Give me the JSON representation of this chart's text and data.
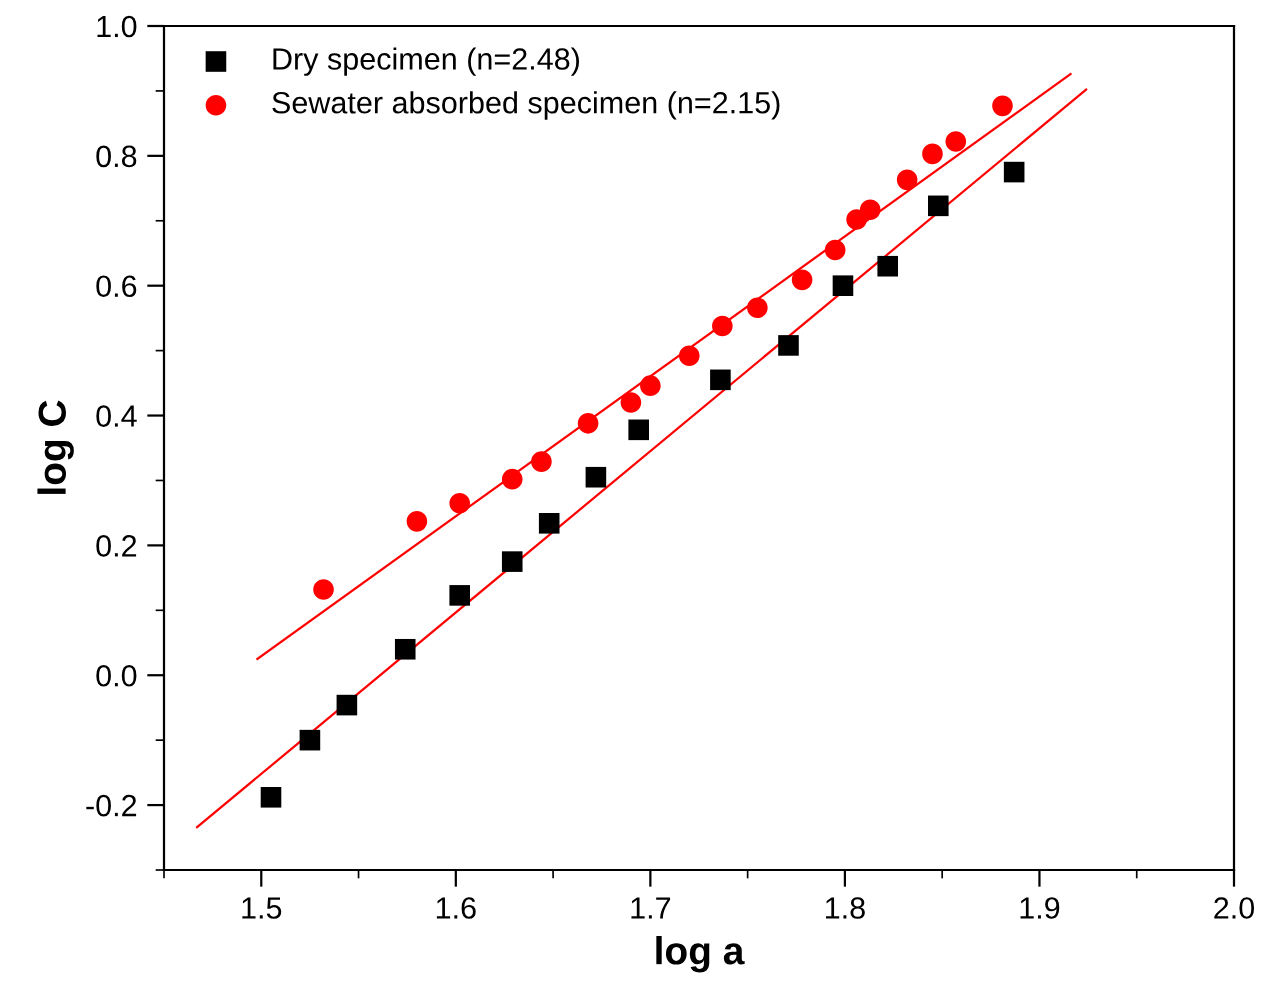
{
  "chart_data": {
    "type": "scatter",
    "xlabel": "log a",
    "ylabel": "log C",
    "xlim": [
      1.45,
      2.0
    ],
    "ylim": [
      -0.3,
      1.0
    ],
    "xticks": [
      1.5,
      1.6,
      1.7,
      1.8,
      1.9,
      {
        "value": 2.0,
        "label": "2.0"
      }
    ],
    "yticks": [
      {
        "value": -0.2,
        "label": "-0.2"
      },
      {
        "value": 0.0,
        "label": "0.0"
      },
      0.2,
      0.4,
      0.6,
      0.8,
      {
        "value": 1.0,
        "label": "1.0"
      }
    ],
    "grid": false,
    "legend": "top left",
    "series": [
      {
        "name": "Dry specimen (n=2.48)",
        "color": "#000000",
        "marker": "square",
        "x": [
          1.505,
          1.525,
          1.544,
          1.574,
          1.602,
          1.629,
          1.648,
          1.672,
          1.694,
          1.736,
          1.771,
          1.799,
          1.822,
          1.848,
          1.887
        ],
        "values": [
          -0.188,
          -0.1,
          -0.046,
          0.04,
          0.123,
          0.175,
          0.234,
          0.305,
          0.378,
          0.455,
          0.508,
          0.6,
          0.63,
          0.723,
          0.775
        ]
      },
      {
        "name": "Sewater absorbed specimen (n=2.15)",
        "color": "#ff0000",
        "marker": "circle",
        "x": [
          1.532,
          1.58,
          1.602,
          1.629,
          1.644,
          1.668,
          1.69,
          1.7,
          1.72,
          1.737,
          1.755,
          1.778,
          1.795,
          1.806,
          1.813,
          1.832,
          1.845,
          1.857,
          1.881
        ],
        "values": [
          0.132,
          0.237,
          0.265,
          0.302,
          0.329,
          0.388,
          0.42,
          0.446,
          0.492,
          0.538,
          0.566,
          0.609,
          0.655,
          0.702,
          0.717,
          0.763,
          0.803,
          0.822,
          0.877
        ]
      },
      {
        "type": "line",
        "color": "#ff0000",
        "marker": "none",
        "x": [
          1.467,
          1.924
        ],
        "values": [
          -0.234,
          0.902
        ]
      },
      {
        "type": "line",
        "color": "#ff0000",
        "marker": "none",
        "x": [
          1.498,
          1.916
        ],
        "values": [
          0.025,
          0.926
        ]
      }
    ]
  }
}
